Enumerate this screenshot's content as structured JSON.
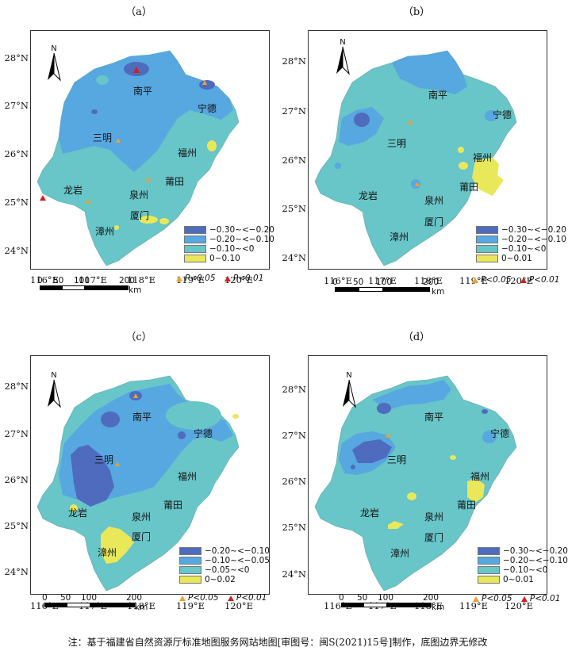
{
  "note": "注：基于福建省自然资源厅标准地图服务网站地图[审图号：闽S(2021)15号]制作，底图边界无修改",
  "colors": {
    "dark": "#4f6bbd",
    "mid": "#57a7e0",
    "light": "#68c5c8",
    "yellow": "#e8e85a",
    "tri_orange": "#f0a030",
    "tri_red": "#d22020",
    "border": "#b8d4d4"
  },
  "north_label": "N",
  "scale": {
    "ticks": [
      "0",
      "50",
      "100",
      "200"
    ],
    "unit": "km"
  },
  "significance": {
    "p05": "P<0.05",
    "p01": "P<0.01"
  },
  "panels": [
    {
      "label": "（a）",
      "lat_ticks": [
        "28°N",
        "27°N",
        "26°N",
        "25°N",
        "24°N"
      ],
      "lon_ticks": [
        "116°E",
        "117°E",
        "118°E",
        "119°E",
        "120°E"
      ],
      "cities": [
        "南平",
        "宁德",
        "三明",
        "福州",
        "莆田",
        "龙岩",
        "泉州",
        "厦门",
        "漳州"
      ],
      "legend": [
        "−0.30~<−0.20",
        "−0.20~<−0.10",
        "−0.10~<0",
        "0~0.10"
      ]
    },
    {
      "label": "（b）",
      "lat_ticks": [
        "28°N",
        "27°N",
        "26°N",
        "25°N",
        "24°N"
      ],
      "lon_ticks": [
        "116°E",
        "117°E",
        "118°E",
        "119°E",
        "120°E"
      ],
      "cities": [
        "南平",
        "宁德",
        "三明",
        "福州",
        "莆田",
        "龙岩",
        "泉州",
        "厦门",
        "漳州"
      ],
      "legend": [
        "−0.30~<−0.20",
        "−0.20~<−0.10",
        "−0.10~<0",
        "0~0.01"
      ]
    },
    {
      "label": "（c）",
      "lat_ticks": [
        "28°N",
        "27°N",
        "26°N",
        "25°N",
        "24°N"
      ],
      "lon_ticks": [
        "116°E",
        "117°E",
        "118°E",
        "119°E",
        "120°E"
      ],
      "cities": [
        "南平",
        "宁德",
        "三明",
        "福州",
        "莆田",
        "龙岩",
        "泉州",
        "厦门",
        "漳州"
      ],
      "legend": [
        "−0.20~<−0.10",
        "−0.10~<−0.05",
        "−0.05~<0",
        "0~0.02"
      ]
    },
    {
      "label": "（d）",
      "lat_ticks": [
        "28°N",
        "27°N",
        "26°N",
        "25°N",
        "24°N"
      ],
      "lon_ticks": [
        "116°E",
        "117°E",
        "118°E",
        "119°E",
        "120°E"
      ],
      "cities": [
        "南平",
        "宁德",
        "三明",
        "福州",
        "莆田",
        "龙岩",
        "泉州",
        "厦门",
        "漳州"
      ],
      "legend": [
        "−0.30~<−0.20",
        "−0.20~<−0.10",
        "−0.10~<0",
        "0~0.01"
      ]
    }
  ]
}
